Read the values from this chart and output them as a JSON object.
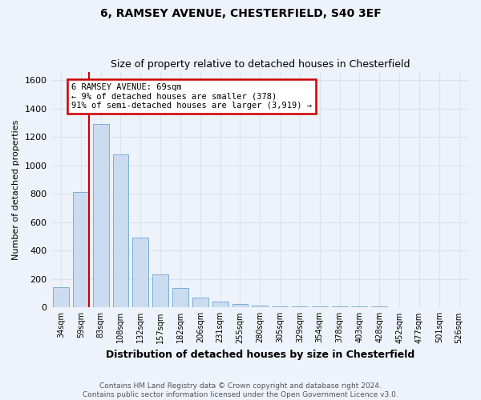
{
  "title": "6, RAMSEY AVENUE, CHESTERFIELD, S40 3EF",
  "subtitle": "Size of property relative to detached houses in Chesterfield",
  "xlabel": "Distribution of detached houses by size in Chesterfield",
  "ylabel": "Number of detached properties",
  "categories": [
    "34sqm",
    "59sqm",
    "83sqm",
    "108sqm",
    "132sqm",
    "157sqm",
    "182sqm",
    "206sqm",
    "231sqm",
    "255sqm",
    "280sqm",
    "305sqm",
    "329sqm",
    "354sqm",
    "378sqm",
    "403sqm",
    "428sqm",
    "452sqm",
    "477sqm",
    "501sqm",
    "526sqm"
  ],
  "values": [
    140,
    810,
    1290,
    1080,
    490,
    235,
    135,
    70,
    40,
    25,
    15,
    10,
    10,
    5,
    5,
    5,
    5,
    0,
    0,
    0,
    0
  ],
  "bar_color": "#ccdcf0",
  "bar_edge_color": "#7aafd4",
  "ylim": [
    0,
    1660
  ],
  "yticks": [
    0,
    200,
    400,
    600,
    800,
    1000,
    1200,
    1400,
    1600
  ],
  "red_line_x": 1.417,
  "red_line_color": "#cc0000",
  "annotation_text": "6 RAMSEY AVENUE: 69sqm\n← 9% of detached houses are smaller (378)\n91% of semi-detached houses are larger (3,919) →",
  "annotation_box_color": "#cc0000",
  "annotation_fill": "#ffffff",
  "footer_text": "Contains HM Land Registry data © Crown copyright and database right 2024.\nContains public sector information licensed under the Open Government Licence v3.0.",
  "background_color": "#eef2fa",
  "grid_color": "#d8e4f0"
}
